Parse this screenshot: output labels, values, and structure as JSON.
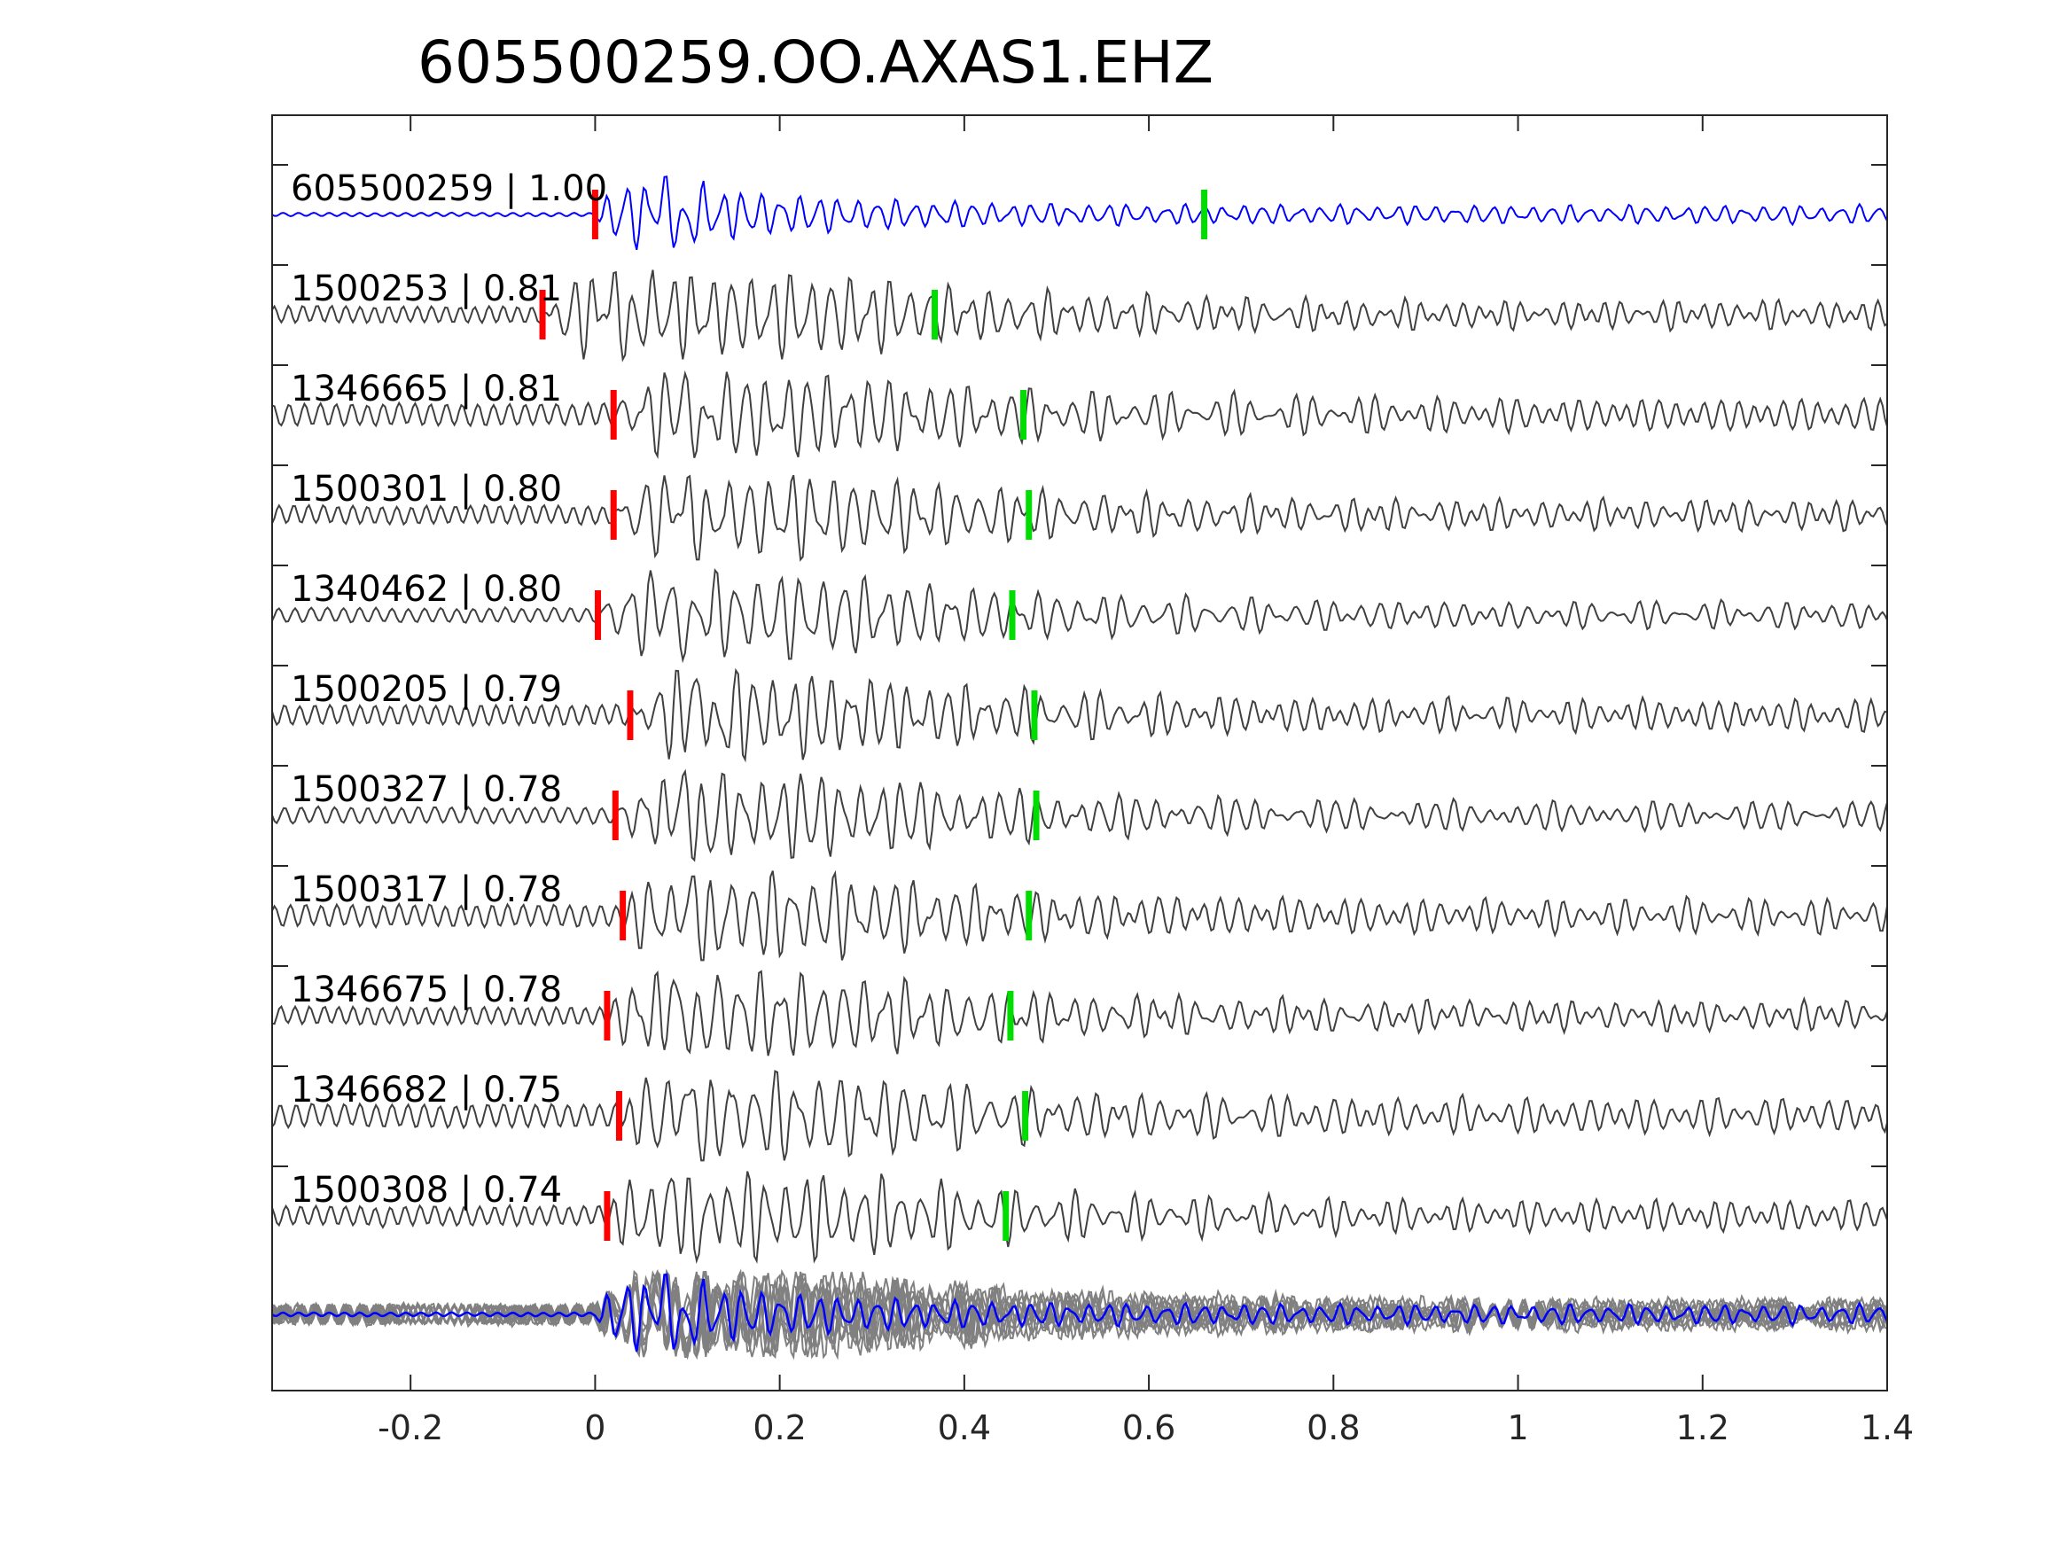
{
  "chart_data": {
    "type": "line",
    "title": "605500259.OO.AXAS1.EHZ",
    "xlabel": "",
    "ylabel": "",
    "xlim": [
      -0.35,
      1.4
    ],
    "x_ticks": [
      -0.2,
      0,
      0.2,
      0.4,
      0.6,
      0.8,
      1,
      1.2,
      1.4
    ],
    "x_tick_labels": [
      "-0.2",
      "0",
      "0.2",
      "0.4",
      "0.6",
      "0.8",
      "1",
      "1.2",
      "1.4"
    ],
    "grid": false,
    "colors": {
      "template_trace": "#0000ff",
      "match_trace": "#404040",
      "stack_traces": "#808080",
      "p_pick": "#ff0000",
      "s_pick": "#00dd00",
      "axes": "#262626"
    },
    "traces": [
      {
        "id": "605500259",
        "cc": "1.00",
        "label": "605500259 | 1.00",
        "p_pick": 0.0,
        "s_pick": 0.66,
        "role": "template"
      },
      {
        "id": "1500253",
        "cc": "0.81",
        "label": "1500253 | 0.81",
        "p_pick": -0.057,
        "s_pick": 0.368,
        "role": "match"
      },
      {
        "id": "1346665",
        "cc": "0.81",
        "label": "1346665 | 0.81",
        "p_pick": 0.02,
        "s_pick": 0.464,
        "role": "match"
      },
      {
        "id": "1500301",
        "cc": "0.80",
        "label": "1500301 | 0.80",
        "p_pick": 0.02,
        "s_pick": 0.47,
        "role": "match"
      },
      {
        "id": "1340462",
        "cc": "0.80",
        "label": "1340462 | 0.80",
        "p_pick": 0.003,
        "s_pick": 0.452,
        "role": "match"
      },
      {
        "id": "1500205",
        "cc": "0.79",
        "label": "1500205 | 0.79",
        "p_pick": 0.038,
        "s_pick": 0.476,
        "role": "match"
      },
      {
        "id": "1500327",
        "cc": "0.78",
        "label": "1500327 | 0.78",
        "p_pick": 0.022,
        "s_pick": 0.478,
        "role": "match"
      },
      {
        "id": "1500317",
        "cc": "0.78",
        "label": "1500317 | 0.78",
        "p_pick": 0.03,
        "s_pick": 0.47,
        "role": "match"
      },
      {
        "id": "1346675",
        "cc": "0.78",
        "label": "1346675 | 0.78",
        "p_pick": 0.013,
        "s_pick": 0.45,
        "role": "match"
      },
      {
        "id": "1346682",
        "cc": "0.75",
        "label": "1346682 | 0.75",
        "p_pick": 0.026,
        "s_pick": 0.466,
        "role": "match"
      },
      {
        "id": "1500308",
        "cc": "0.74",
        "label": "1500308 | 0.74",
        "p_pick": 0.013,
        "s_pick": 0.445,
        "role": "match"
      }
    ],
    "stack": {
      "description_visible": false,
      "n_overlay": 10
    }
  }
}
